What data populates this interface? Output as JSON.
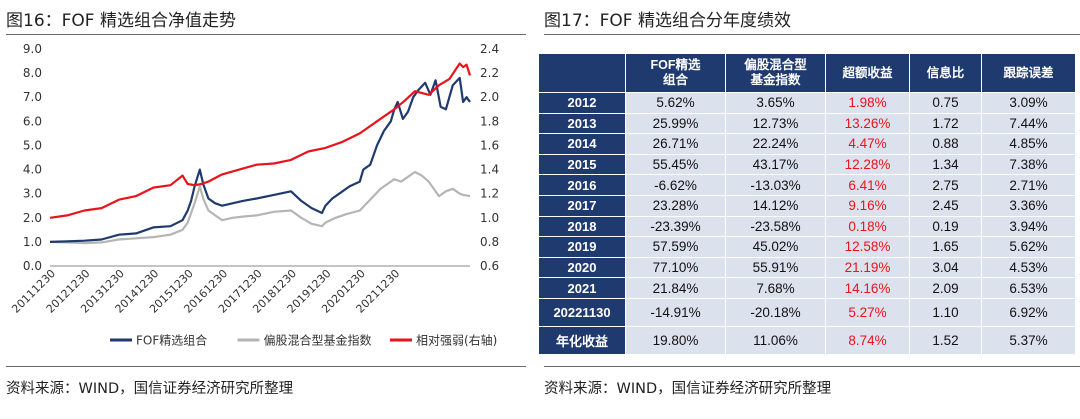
{
  "left": {
    "title": "图16：FOF 精选组合净值走势",
    "source": "资料来源：WIND，国信证券经济研究所整理",
    "chart_data": {
      "type": "line",
      "x_tick_labels": [
        "20111230",
        "20121230",
        "20131230",
        "20141230",
        "20151230",
        "20161230",
        "20171230",
        "20181230",
        "20191230",
        "20201230",
        "20211230"
      ],
      "y_left": {
        "ylim": [
          0,
          9
        ],
        "ticks": [
          "0.0",
          "1.0",
          "2.0",
          "3.0",
          "4.0",
          "5.0",
          "6.0",
          "7.0",
          "8.0",
          "9.0"
        ]
      },
      "y_right": {
        "ylim": [
          0.6,
          2.4
        ],
        "ticks": [
          "0.6",
          "0.8",
          "1.0",
          "1.2",
          "1.4",
          "1.6",
          "1.8",
          "2.0",
          "2.2",
          "2.4"
        ]
      },
      "x_range": [
        2011.0,
        2023.2
      ],
      "grid": false,
      "legend_position": "bottom",
      "series": [
        {
          "name": "FOF精选组合",
          "axis": "left",
          "color": "#1f3a6e",
          "x": [
            2011.0,
            2011.5,
            2012.0,
            2012.5,
            2013.0,
            2013.5,
            2014.0,
            2014.5,
            2014.85,
            2015.0,
            2015.1,
            2015.2,
            2015.35,
            2015.45,
            2015.6,
            2015.8,
            2016.0,
            2016.3,
            2016.6,
            2017.0,
            2017.5,
            2018.0,
            2018.3,
            2018.6,
            2018.9,
            2019.0,
            2019.2,
            2019.4,
            2019.7,
            2020.0,
            2020.1,
            2020.3,
            2020.5,
            2020.7,
            2020.9,
            2021.0,
            2021.1,
            2021.25,
            2021.4,
            2021.55,
            2021.7,
            2021.9,
            2022.05,
            2022.2,
            2022.35,
            2022.5,
            2022.7,
            2022.9,
            2023.0,
            2023.1,
            2023.2
          ],
          "y": [
            1.0,
            1.02,
            1.05,
            1.1,
            1.3,
            1.35,
            1.6,
            1.65,
            1.9,
            2.3,
            2.7,
            3.3,
            4.0,
            3.4,
            2.8,
            2.6,
            2.5,
            2.6,
            2.7,
            2.8,
            2.95,
            3.1,
            2.7,
            2.4,
            2.2,
            2.5,
            2.8,
            3.0,
            3.3,
            3.5,
            4.0,
            4.2,
            5.0,
            5.6,
            6.0,
            6.5,
            6.8,
            6.1,
            6.4,
            7.0,
            7.3,
            7.6,
            7.1,
            7.7,
            6.6,
            6.5,
            7.5,
            7.8,
            6.8,
            7.0,
            6.8
          ]
        },
        {
          "name": "偏股混合型基金指数",
          "axis": "left",
          "color": "#b5b5b5",
          "x": [
            2011.0,
            2011.5,
            2012.0,
            2012.5,
            2013.0,
            2013.5,
            2014.0,
            2014.5,
            2014.85,
            2015.0,
            2015.1,
            2015.2,
            2015.35,
            2015.45,
            2015.6,
            2015.8,
            2016.0,
            2016.3,
            2016.6,
            2017.0,
            2017.5,
            2018.0,
            2018.3,
            2018.6,
            2018.9,
            2019.0,
            2019.3,
            2019.6,
            2020.0,
            2020.2,
            2020.4,
            2020.6,
            2020.8,
            2021.0,
            2021.2,
            2021.4,
            2021.6,
            2021.8,
            2022.0,
            2022.3,
            2022.5,
            2022.7,
            2022.9,
            2023.0,
            2023.2
          ],
          "y": [
            1.0,
            0.98,
            0.95,
            0.98,
            1.1,
            1.15,
            1.2,
            1.3,
            1.5,
            1.8,
            2.2,
            2.6,
            3.3,
            2.8,
            2.3,
            2.1,
            1.9,
            2.0,
            2.05,
            2.1,
            2.25,
            2.3,
            2.0,
            1.75,
            1.65,
            1.8,
            2.0,
            2.15,
            2.3,
            2.6,
            2.9,
            3.2,
            3.4,
            3.6,
            3.5,
            3.7,
            3.9,
            3.75,
            3.5,
            2.9,
            3.1,
            3.2,
            3.0,
            2.95,
            2.9
          ]
        },
        {
          "name": "相对强弱(右轴)",
          "axis": "right",
          "color": "#e8141b",
          "x": [
            2011.0,
            2011.5,
            2012.0,
            2012.5,
            2013.0,
            2013.5,
            2014.0,
            2014.5,
            2014.85,
            2015.0,
            2015.2,
            2015.4,
            2015.6,
            2016.0,
            2016.5,
            2017.0,
            2017.5,
            2018.0,
            2018.5,
            2019.0,
            2019.5,
            2020.0,
            2020.5,
            2021.0,
            2021.3,
            2021.6,
            2022.0,
            2022.3,
            2022.6,
            2022.9,
            2023.0,
            2023.1,
            2023.2
          ],
          "y": [
            1.0,
            1.02,
            1.06,
            1.08,
            1.15,
            1.18,
            1.25,
            1.27,
            1.35,
            1.28,
            1.27,
            1.28,
            1.3,
            1.36,
            1.4,
            1.44,
            1.45,
            1.48,
            1.55,
            1.58,
            1.63,
            1.7,
            1.8,
            1.9,
            1.97,
            2.05,
            2.02,
            2.1,
            2.15,
            2.28,
            2.25,
            2.27,
            2.18
          ]
        }
      ]
    }
  },
  "right": {
    "title": "图17：FOF 精选组合分年度绩效",
    "source": "资料来源：WIND，国信证券经济研究所整理",
    "table": {
      "headers": [
        {
          "lines": [
            "",
            ""
          ]
        },
        {
          "lines": [
            "FOF精选",
            "组合"
          ]
        },
        {
          "lines": [
            "偏股混合型",
            "基金指数"
          ]
        },
        {
          "lines": [
            "超额收益",
            ""
          ]
        },
        {
          "lines": [
            "信息比",
            ""
          ]
        },
        {
          "lines": [
            "跟踪误差",
            ""
          ]
        }
      ],
      "excess_color": "#e8141b",
      "rows": [
        {
          "year": "2012",
          "fof": "5.62%",
          "index": "3.65%",
          "excess": "1.98%",
          "ir": "0.75",
          "te": "3.09%"
        },
        {
          "year": "2013",
          "fof": "25.99%",
          "index": "12.73%",
          "excess": "13.26%",
          "ir": "1.72",
          "te": "7.44%"
        },
        {
          "year": "2014",
          "fof": "26.71%",
          "index": "22.24%",
          "excess": "4.47%",
          "ir": "0.88",
          "te": "4.85%"
        },
        {
          "year": "2015",
          "fof": "55.45%",
          "index": "43.17%",
          "excess": "12.28%",
          "ir": "1.34",
          "te": "7.38%"
        },
        {
          "year": "2016",
          "fof": "-6.62%",
          "index": "-13.03%",
          "excess": "6.41%",
          "ir": "2.75",
          "te": "2.71%"
        },
        {
          "year": "2017",
          "fof": "23.28%",
          "index": "14.12%",
          "excess": "9.16%",
          "ir": "2.45",
          "te": "3.36%"
        },
        {
          "year": "2018",
          "fof": "-23.39%",
          "index": "-23.58%",
          "excess": "0.18%",
          "ir": "0.19",
          "te": "3.94%"
        },
        {
          "year": "2019",
          "fof": "57.59%",
          "index": "45.02%",
          "excess": "12.58%",
          "ir": "1.65",
          "te": "5.62%"
        },
        {
          "year": "2020",
          "fof": "77.10%",
          "index": "55.91%",
          "excess": "21.19%",
          "ir": "3.04",
          "te": "4.53%"
        },
        {
          "year": "2021",
          "fof": "21.84%",
          "index": "7.68%",
          "excess": "14.16%",
          "ir": "2.09",
          "te": "6.53%"
        },
        {
          "year": "20221130",
          "fof": "-14.91%",
          "index": "-20.18%",
          "excess": "5.27%",
          "ir": "1.10",
          "te": "6.92%"
        },
        {
          "year": "年化收益",
          "fof": "19.80%",
          "index": "11.06%",
          "excess": "8.74%",
          "ir": "1.52",
          "te": "5.37%"
        }
      ]
    }
  }
}
